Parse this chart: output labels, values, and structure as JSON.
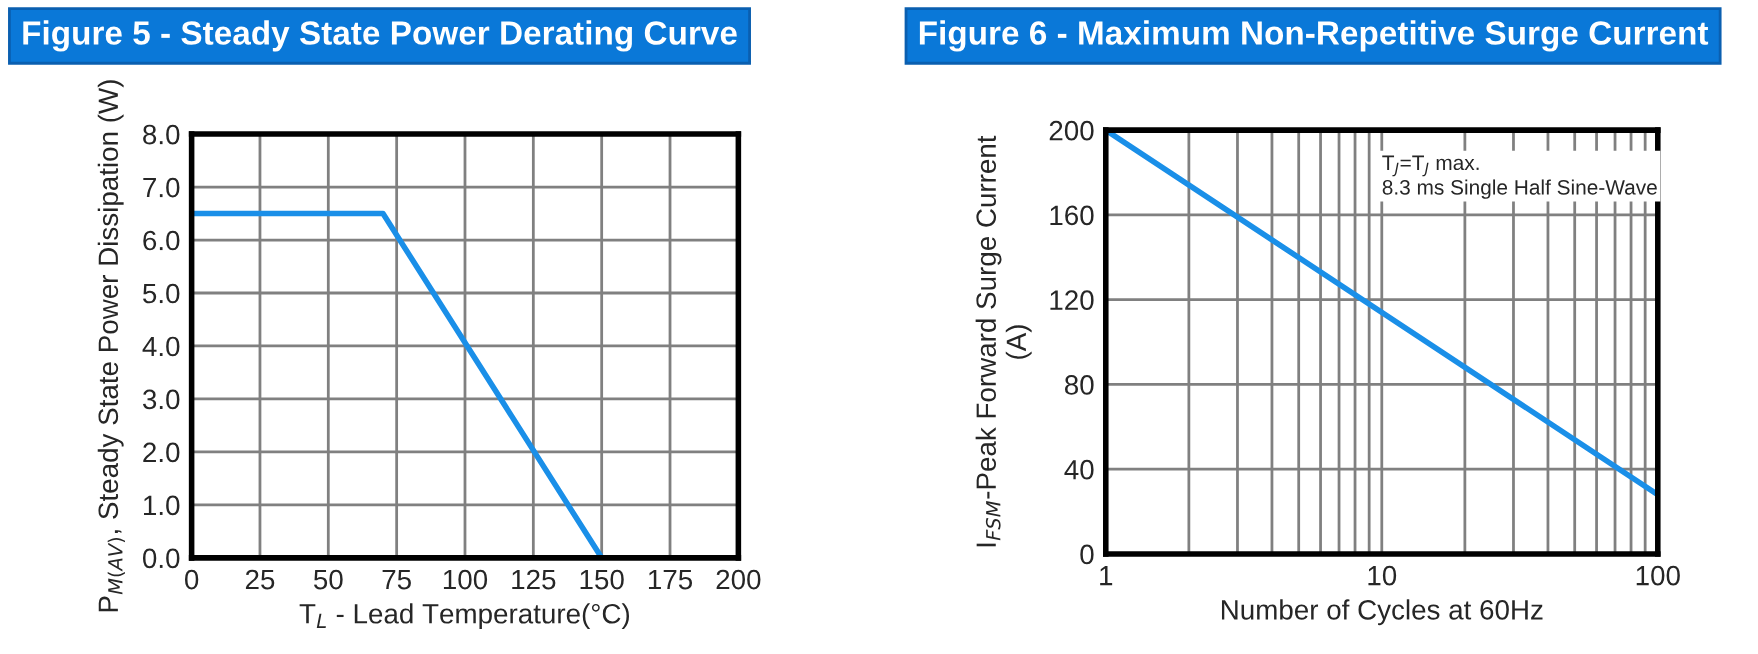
{
  "chart_data": [
    {
      "type": "line",
      "title": "Figure 5 - Steady State Power Derating Curve",
      "xlabel": "T$_{L}$ - Lead Temperature(°C)",
      "ylabel": "P$_{M(AV)}$, Steady State Power Dissipation (W)",
      "x": [
        0,
        70,
        150
      ],
      "series": [
        {
          "color": "#1a8fe8",
          "values": [
            6.5,
            6.5,
            0
          ]
        }
      ],
      "xlim": [
        0,
        200
      ],
      "xticks": [
        0,
        25,
        50,
        75,
        100,
        125,
        150,
        175,
        200
      ],
      "ylim": [
        0,
        8
      ],
      "yticks": [
        {
          "value": 0,
          "label": "0.0"
        },
        {
          "value": 1,
          "label": "1.0"
        },
        {
          "value": 2,
          "label": "2.0"
        },
        {
          "value": 3,
          "label": "3.0"
        },
        {
          "value": 4,
          "label": "4.0"
        },
        {
          "value": 5,
          "label": "5.0"
        },
        {
          "value": 6,
          "label": "6.0"
        },
        {
          "value": 7,
          "label": "7.0"
        },
        {
          "value": 8,
          "label": "8.0"
        }
      ],
      "grid": true
    },
    {
      "type": "line",
      "title": "Figure 6 - Maximum Non-Repetitive Surge Current",
      "xlabel": "Number of Cycles at 60Hz",
      "ylabel": "I$_{FSM}$-Peak Forward Surge Current\n(A)",
      "annotations": [
        "T$_{J}$=T$_{J}$ max.\n8.3 ms Single Half Sine-Wave"
      ],
      "x": [
        1,
        100
      ],
      "series": [
        {
          "color": "#1a8fe8",
          "values": [
            200,
            28
          ]
        }
      ],
      "log": "x",
      "xlim": [
        1,
        100
      ],
      "xticks": [
        1,
        10,
        100
      ],
      "ylim": [
        0,
        200
      ],
      "yticks": [
        0,
        40,
        80,
        120,
        160,
        200
      ],
      "grid": true
    }
  ]
}
